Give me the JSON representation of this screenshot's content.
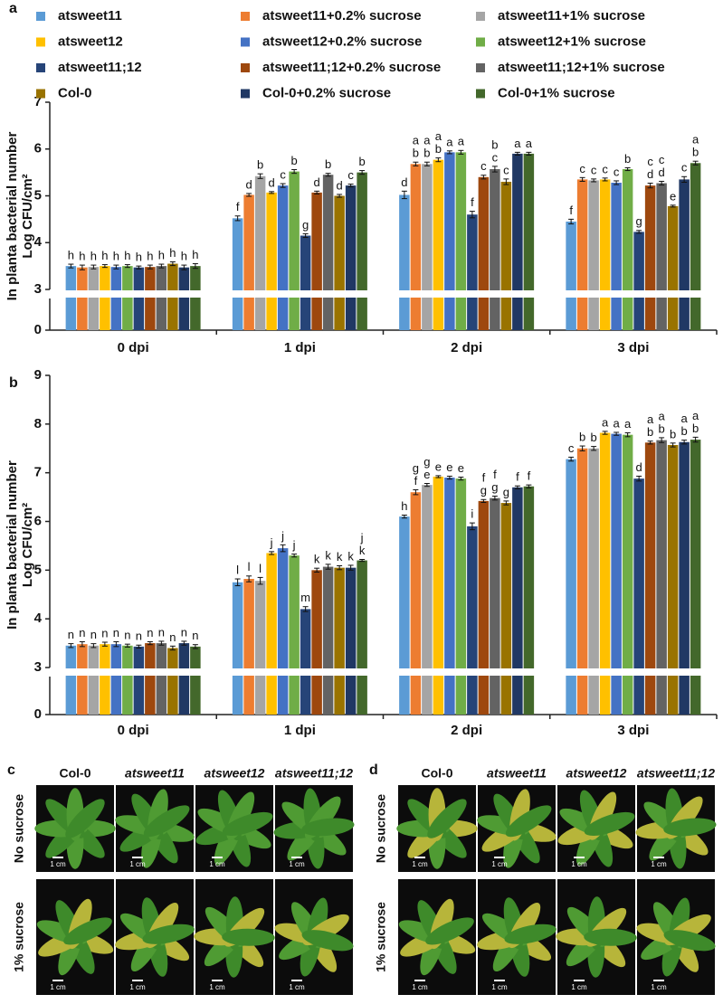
{
  "chart_data": [
    {
      "type": "bar",
      "panel": "a",
      "ylabel": [
        "In planta bacterial number",
        "Log CFU/cm²"
      ],
      "categories": [
        "0 dpi",
        "1 dpi",
        "2 dpi",
        "3 dpi"
      ],
      "ylim": [
        0,
        7
      ],
      "y_break": [
        0,
        3
      ],
      "yticks": [
        0,
        3,
        4,
        5,
        6,
        7
      ],
      "legend": "top",
      "series": [
        {
          "name": "atsweet11",
          "color": "#5b9bd5",
          "values": [
            3.5,
            4.52,
            5.02,
            4.45
          ],
          "errors": [
            0.04,
            0.05,
            0.08,
            0.05
          ],
          "letters": [
            [
              "h"
            ],
            [
              "f"
            ],
            [
              "d"
            ],
            [
              "f"
            ]
          ]
        },
        {
          "name": "atsweet11+0.2% sucrose",
          "color": "#ed7d31",
          "values": [
            3.47,
            5.02,
            5.68,
            5.35
          ],
          "errors": [
            0.05,
            0.03,
            0.04,
            0.04
          ],
          "letters": [
            [
              "h"
            ],
            [
              "d"
            ],
            [
              "a",
              "b"
            ],
            [
              "c"
            ]
          ]
        },
        {
          "name": "atsweet11+1% sucrose",
          "color": "#a5a5a5",
          "values": [
            3.48,
            5.42,
            5.68,
            5.33
          ],
          "errors": [
            0.04,
            0.05,
            0.04,
            0.03
          ],
          "letters": [
            [
              "h"
            ],
            [
              "b"
            ],
            [
              "a",
              "b"
            ],
            [
              "c"
            ]
          ]
        },
        {
          "name": "atsweet12",
          "color": "#ffc000",
          "values": [
            3.5,
            5.07,
            5.77,
            5.35
          ],
          "errors": [
            0.03,
            0.02,
            0.04,
            0.03
          ],
          "letters": [
            [
              "h"
            ],
            [
              "d"
            ],
            [
              "a",
              "b"
            ],
            [
              "c"
            ]
          ]
        },
        {
          "name": "atsweet12+0.2% sucrose",
          "color": "#4472c4",
          "values": [
            3.48,
            5.22,
            5.93,
            5.28
          ],
          "errors": [
            0.04,
            0.04,
            0.03,
            0.04
          ],
          "letters": [
            [
              "h"
            ],
            [
              "c"
            ],
            [
              "a"
            ],
            [
              "c"
            ]
          ]
        },
        {
          "name": "atsweet12+1% sucrose",
          "color": "#70ad47",
          "values": [
            3.5,
            5.52,
            5.93,
            5.57
          ],
          "errors": [
            0.03,
            0.04,
            0.04,
            0.03
          ],
          "letters": [
            [
              "h"
            ],
            [
              "b"
            ],
            [
              "a"
            ],
            [
              "b"
            ]
          ]
        },
        {
          "name": "atsweet11;12",
          "color": "#264478",
          "values": [
            3.47,
            4.15,
            4.6,
            4.23
          ],
          "errors": [
            0.03,
            0.04,
            0.07,
            0.03
          ],
          "letters": [
            [
              "h"
            ],
            [
              "g"
            ],
            [
              "f"
            ],
            [
              "g"
            ]
          ]
        },
        {
          "name": "atsweet11;12+0.2% sucrose",
          "color": "#9e480e",
          "values": [
            3.48,
            5.07,
            5.4,
            5.22
          ],
          "errors": [
            0.04,
            0.03,
            0.04,
            0.05
          ],
          "letters": [
            [
              "h"
            ],
            [
              "d"
            ],
            [
              "c"
            ],
            [
              "c",
              "d"
            ]
          ]
        },
        {
          "name": "atsweet11;12+1% sucrose",
          "color": "#636363",
          "values": [
            3.5,
            5.45,
            5.57,
            5.27
          ],
          "errors": [
            0.04,
            0.03,
            0.06,
            0.04
          ],
          "letters": [
            [
              "h"
            ],
            [
              "b"
            ],
            [
              "b",
              "c"
            ],
            [
              "c",
              "d"
            ]
          ]
        },
        {
          "name": "Col-0",
          "color": "#997300",
          "values": [
            3.55,
            5.0,
            5.3,
            4.78
          ],
          "errors": [
            0.04,
            0.03,
            0.06,
            0.02
          ],
          "letters": [
            [
              "h"
            ],
            [
              "d"
            ],
            [
              "c"
            ],
            [
              "e"
            ]
          ]
        },
        {
          "name": "Col-0+0.2% sucrose",
          "color": "#203864",
          "values": [
            3.47,
            5.22,
            5.9,
            5.35
          ],
          "errors": [
            0.05,
            0.03,
            0.03,
            0.06
          ],
          "letters": [
            [
              "h"
            ],
            [
              "c"
            ],
            [
              "a"
            ],
            [
              "c"
            ]
          ]
        },
        {
          "name": "Col-0+1% sucrose",
          "color": "#43682b",
          "values": [
            3.5,
            5.5,
            5.9,
            5.7
          ],
          "errors": [
            0.05,
            0.04,
            0.03,
            0.04
          ],
          "letters": [
            [
              "h"
            ],
            [
              "b"
            ],
            [
              "a"
            ],
            [
              "a",
              "b"
            ]
          ]
        }
      ]
    },
    {
      "type": "bar",
      "panel": "b",
      "ylabel": [
        "In planta bacterial number",
        "Log CFU/cm²"
      ],
      "categories": [
        "0 dpi",
        "1 dpi",
        "2 dpi",
        "3 dpi"
      ],
      "ylim": [
        0,
        9
      ],
      "y_break": [
        0,
        3
      ],
      "yticks": [
        0,
        3,
        4,
        5,
        6,
        7,
        8,
        9
      ],
      "series": [
        {
          "color": "#5b9bd5",
          "values": [
            3.45,
            4.75,
            6.1,
            7.28
          ],
          "errors": [
            0.04,
            0.07,
            0.03,
            0.04
          ],
          "letters": [
            [
              "n"
            ],
            [
              "l"
            ],
            [
              "h"
            ],
            [
              "c"
            ]
          ]
        },
        {
          "color": "#ed7d31",
          "values": [
            3.48,
            4.82,
            6.6,
            7.5
          ],
          "errors": [
            0.05,
            0.06,
            0.05,
            0.05
          ],
          "letters": [
            [
              "n"
            ],
            [
              "l"
            ],
            [
              "g",
              "f"
            ],
            [
              "b"
            ]
          ]
        },
        {
          "color": "#a5a5a5",
          "values": [
            3.45,
            4.78,
            6.75,
            7.5
          ],
          "errors": [
            0.04,
            0.07,
            0.03,
            0.04
          ],
          "letters": [
            [
              "n"
            ],
            [
              "l"
            ],
            [
              "g",
              "e"
            ],
            [
              "b"
            ]
          ]
        },
        {
          "color": "#ffc000",
          "values": [
            3.48,
            5.35,
            6.92,
            7.82
          ],
          "errors": [
            0.04,
            0.03,
            0.02,
            0.03
          ],
          "letters": [
            [
              "n"
            ],
            [
              "j"
            ],
            [
              "e"
            ],
            [
              "a"
            ]
          ]
        },
        {
          "color": "#4472c4",
          "values": [
            3.48,
            5.45,
            6.9,
            7.8
          ],
          "errors": [
            0.05,
            0.07,
            0.03,
            0.03
          ],
          "letters": [
            [
              "n"
            ],
            [
              "j"
            ],
            [
              "e"
            ],
            [
              "a"
            ]
          ]
        },
        {
          "color": "#70ad47",
          "values": [
            3.45,
            5.3,
            6.88,
            7.78
          ],
          "errors": [
            0.03,
            0.03,
            0.03,
            0.04
          ],
          "letters": [
            [
              "n"
            ],
            [
              "j"
            ],
            [
              "e"
            ],
            [
              "a"
            ]
          ]
        },
        {
          "color": "#264478",
          "values": [
            3.43,
            4.2,
            5.9,
            6.88
          ],
          "errors": [
            0.03,
            0.05,
            0.07,
            0.05
          ],
          "letters": [
            [
              "n"
            ],
            [
              "m"
            ],
            [
              "i"
            ],
            [
              "d"
            ]
          ]
        },
        {
          "color": "#9e480e",
          "values": [
            3.5,
            5.0,
            6.42,
            7.62
          ],
          "errors": [
            0.03,
            0.04,
            0.03,
            0.03
          ],
          "letters": [
            [
              "n"
            ],
            [
              "k"
            ],
            [
              "f",
              "g"
            ],
            [
              "a",
              "b"
            ]
          ]
        },
        {
          "color": "#636363",
          "values": [
            3.5,
            5.07,
            6.48,
            7.67
          ],
          "errors": [
            0.04,
            0.05,
            0.04,
            0.05
          ],
          "letters": [
            [
              "n"
            ],
            [
              "k"
            ],
            [
              "f",
              "g"
            ],
            [
              "a",
              "b"
            ]
          ]
        },
        {
          "color": "#997300",
          "values": [
            3.4,
            5.05,
            6.38,
            7.57
          ],
          "errors": [
            0.04,
            0.04,
            0.04,
            0.04
          ],
          "letters": [
            [
              "n"
            ],
            [
              "k"
            ],
            [
              "g"
            ],
            [
              "b"
            ]
          ]
        },
        {
          "color": "#203864",
          "values": [
            3.5,
            5.05,
            6.7,
            7.63
          ],
          "errors": [
            0.04,
            0.05,
            0.03,
            0.04
          ],
          "letters": [
            [
              "n"
            ],
            [
              "k"
            ],
            [
              "f"
            ],
            [
              "a",
              "b"
            ]
          ]
        },
        {
          "color": "#43682b",
          "values": [
            3.43,
            5.2,
            6.72,
            7.68
          ],
          "errors": [
            0.04,
            0.02,
            0.03,
            0.05
          ],
          "letters": [
            [
              "n"
            ],
            [
              "j",
              "k"
            ],
            [
              "f"
            ],
            [
              "a",
              "b"
            ]
          ]
        }
      ]
    }
  ],
  "photos": [
    {
      "label": "c",
      "columns": [
        "Col-0",
        "atsweet11",
        "atsweet12",
        "atsweet11;12"
      ],
      "rows": [
        "No sucrose",
        "1% sucrose"
      ],
      "scale_bar": "1 cm"
    },
    {
      "label": "d",
      "columns": [
        "Col-0",
        "atsweet11",
        "atsweet12",
        "atsweet11;12"
      ],
      "rows": [
        "No sucrose",
        "1% sucrose"
      ],
      "scale_bar": "1 cm"
    }
  ]
}
